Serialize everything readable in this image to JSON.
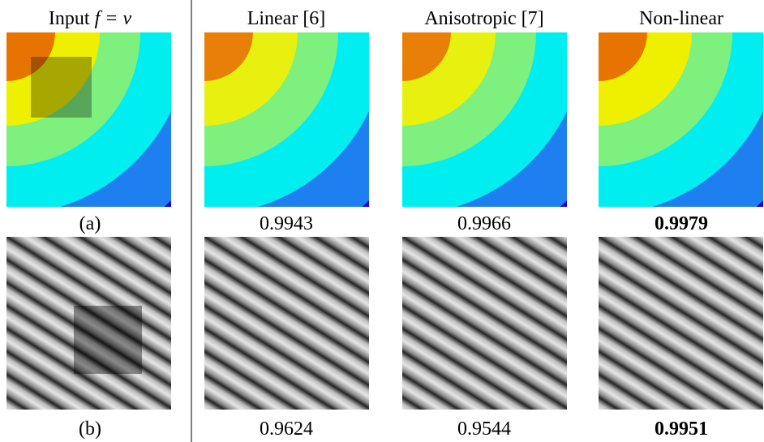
{
  "columns": [
    {
      "header": "Input",
      "math": "f = v"
    },
    {
      "header": "Linear [6]"
    },
    {
      "header": "Anisotropic [7]"
    },
    {
      "header": "Non-linear"
    }
  ],
  "rows": [
    {
      "label": "(a)",
      "scores": [
        "0.9943",
        "0.9966",
        "0.9979"
      ]
    },
    {
      "label": "(b)",
      "scores": [
        "0.9624",
        "0.9544",
        "0.9951"
      ]
    }
  ]
}
